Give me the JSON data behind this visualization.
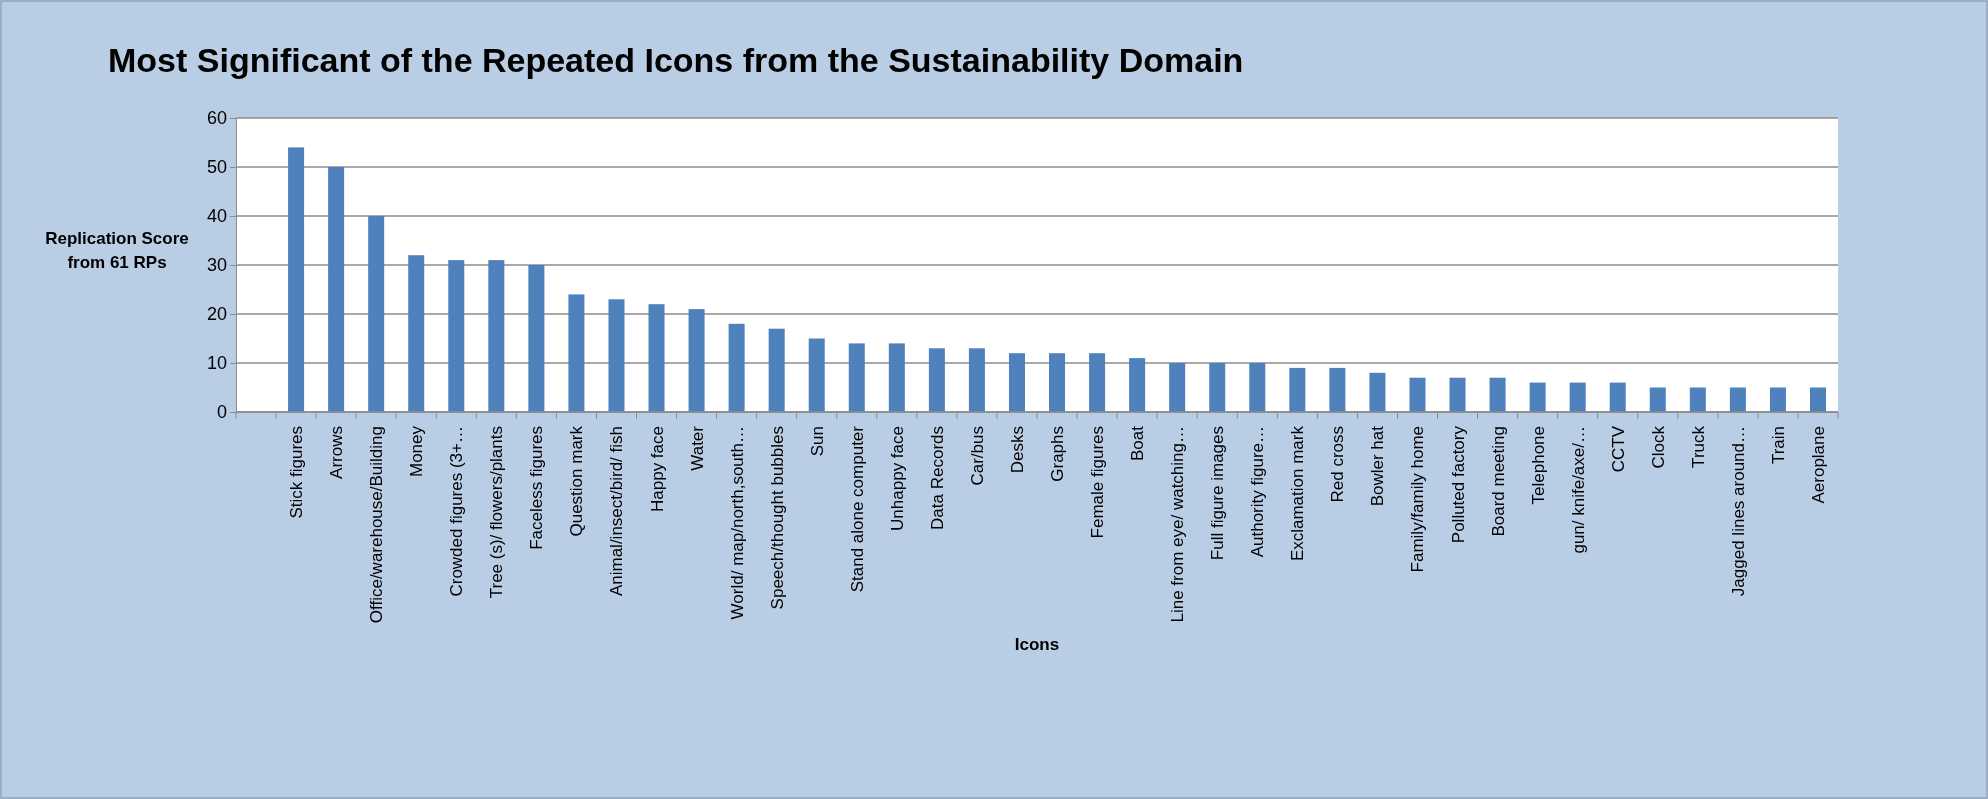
{
  "chart_data": {
    "type": "bar",
    "title": "Most Significant of the Repeated Icons from the Sustainability Domain",
    "xlabel": "Icons",
    "ylabel": "Replication Score from 61 RPs",
    "categories": [
      null,
      "Stick figures",
      "Arrows",
      "Office/warehouse/Building",
      "Money",
      "Crowded figures (3+…",
      "Tree (s)/ flowers/plants",
      "Faceless figures",
      "Question mark",
      "Animal/insect/bird/ fish",
      "Happy face",
      "Water",
      "World/ map/north,south…",
      "Speech/thought bubbles",
      "Sun",
      "Stand alone computer",
      "Unhappy face",
      "Data Records",
      "Car/bus",
      "Desks",
      "Graphs",
      "Female figures",
      "Boat",
      "Line from eye/ watching…",
      "Full figure images",
      "Authority figure…",
      "Exclamation mark",
      "Red cross",
      "Bowler hat",
      "Family/family home",
      "Polluted factory",
      "Board meeting",
      "Telephone",
      "gun/ knife/axe/…",
      "CCTV",
      "Clock",
      "Truck",
      "Jagged lines around…",
      "Train",
      "Aeroplane"
    ],
    "values": [
      null,
      54,
      50,
      40,
      32,
      31,
      31,
      30,
      24,
      23,
      22,
      21,
      18,
      17,
      15,
      14,
      14,
      13,
      13,
      12,
      12,
      12,
      11,
      10,
      10,
      10,
      9,
      9,
      8,
      7,
      7,
      7,
      6,
      6,
      6,
      5,
      5,
      5,
      5,
      5
    ],
    "color": "#4f81bd",
    "ylim": [
      0,
      60
    ],
    "yticks": [
      0,
      10,
      20,
      30,
      40,
      50,
      60
    ],
    "grid": "y"
  }
}
